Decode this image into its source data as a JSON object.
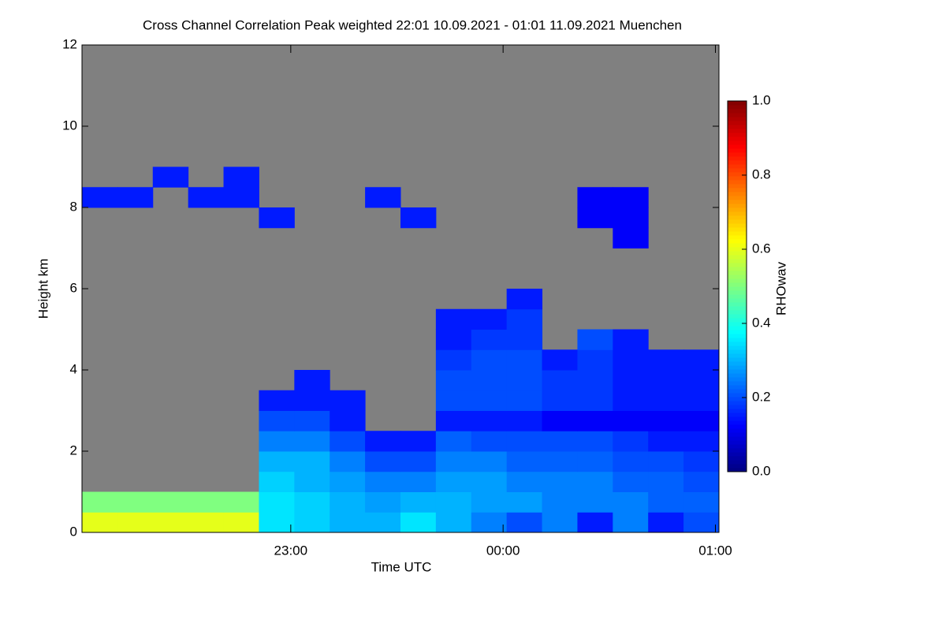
{
  "chart_data": {
    "type": "heatmap",
    "title": "Cross Channel Correlation Peak weighted   22:01 10.09.2021 - 01:01 11.09.2021 Muenchen",
    "x_label": "Time UTC",
    "y_label": "Height km",
    "colorbar_label": "RHOwav",
    "colormap": "jet",
    "no_data_color": "#808080",
    "xlim": [
      22.0167,
      25.0167
    ],
    "xticks": [
      {
        "value": 23,
        "label": "23:00"
      },
      {
        "value": 24,
        "label": "00:00"
      },
      {
        "value": 25,
        "label": "01:00"
      }
    ],
    "ylim": [
      0,
      12
    ],
    "yticks": [
      0,
      2,
      4,
      6,
      8,
      10,
      12
    ],
    "clim": [
      0,
      1
    ],
    "cticks": [
      {
        "value": 0,
        "label": "0.0"
      },
      0.2,
      0.4,
      0.6,
      0.8,
      {
        "value": 1,
        "label": "1.0"
      }
    ],
    "x": [
      22.0167,
      22.1833,
      22.35,
      22.5167,
      22.6833,
      22.85,
      23.0167,
      23.1833,
      23.35,
      23.5167,
      23.6833,
      23.85,
      24.0167,
      24.1833,
      24.35,
      24.5167,
      24.6833,
      24.85,
      25.0167
    ],
    "y": [
      0,
      0.5,
      1,
      1.5,
      2,
      2.5,
      3,
      3.5,
      4,
      4.5,
      5,
      5.5,
      6,
      6.5,
      7,
      7.5,
      8,
      8.5,
      9
    ],
    "values": [
      [
        0.6,
        0.6,
        0.6,
        0.6,
        0.6,
        0.35,
        0.33,
        0.3,
        0.3,
        0.35,
        0.3,
        0.25,
        0.2,
        0.25,
        0.15,
        0.25,
        0.15,
        0.2
      ],
      [
        0.5,
        0.5,
        0.5,
        0.5,
        0.5,
        0.35,
        0.33,
        0.3,
        0.28,
        0.3,
        0.3,
        0.28,
        0.28,
        0.25,
        0.25,
        0.25,
        0.22,
        0.22
      ],
      [
        null,
        null,
        null,
        null,
        null,
        0.33,
        0.3,
        0.28,
        0.25,
        0.25,
        0.28,
        0.28,
        0.25,
        0.25,
        0.25,
        0.22,
        0.22,
        0.2
      ],
      [
        null,
        null,
        null,
        null,
        null,
        0.3,
        0.3,
        0.25,
        0.2,
        0.2,
        0.25,
        0.25,
        0.22,
        0.22,
        0.22,
        0.2,
        0.2,
        0.18
      ],
      [
        null,
        null,
        null,
        null,
        null,
        0.25,
        0.25,
        0.2,
        0.15,
        0.15,
        0.22,
        0.2,
        0.2,
        0.2,
        0.2,
        0.18,
        0.15,
        0.15
      ],
      [
        null,
        null,
        null,
        null,
        null,
        0.2,
        0.2,
        0.15,
        null,
        null,
        0.15,
        0.15,
        0.15,
        0.12,
        0.12,
        0.12,
        0.12,
        0.12
      ],
      [
        null,
        null,
        null,
        null,
        null,
        0.15,
        0.15,
        0.15,
        null,
        null,
        0.2,
        0.2,
        0.2,
        0.18,
        0.18,
        0.15,
        0.15,
        0.15
      ],
      [
        null,
        null,
        null,
        null,
        null,
        null,
        0.15,
        null,
        null,
        null,
        0.2,
        0.2,
        0.2,
        0.18,
        0.18,
        0.15,
        0.15,
        0.15
      ],
      [
        null,
        null,
        null,
        null,
        null,
        null,
        null,
        null,
        null,
        null,
        0.18,
        0.2,
        0.2,
        0.15,
        0.18,
        0.15,
        0.15,
        0.15
      ],
      [
        null,
        null,
        null,
        null,
        null,
        null,
        null,
        null,
        null,
        null,
        0.15,
        0.18,
        0.18,
        null,
        0.2,
        0.15,
        null,
        null
      ],
      [
        null,
        null,
        null,
        null,
        null,
        null,
        null,
        null,
        null,
        null,
        0.15,
        0.15,
        0.18,
        null,
        null,
        null,
        null,
        null
      ],
      [
        null,
        null,
        null,
        null,
        null,
        null,
        null,
        null,
        null,
        null,
        null,
        null,
        0.15,
        null,
        null,
        null,
        null,
        null
      ],
      [
        null,
        null,
        null,
        null,
        null,
        null,
        null,
        null,
        null,
        null,
        null,
        null,
        null,
        null,
        null,
        null,
        null,
        null
      ],
      [
        null,
        null,
        null,
        null,
        null,
        null,
        null,
        null,
        null,
        null,
        null,
        null,
        null,
        null,
        null,
        null,
        null,
        null
      ],
      [
        null,
        null,
        null,
        null,
        null,
        null,
        null,
        null,
        null,
        null,
        null,
        null,
        null,
        null,
        null,
        0.12,
        null,
        null
      ],
      [
        null,
        null,
        null,
        null,
        null,
        0.15,
        null,
        null,
        null,
        0.15,
        null,
        null,
        null,
        null,
        0.12,
        0.12,
        null,
        null
      ],
      [
        0.15,
        0.15,
        null,
        0.15,
        0.15,
        null,
        null,
        null,
        0.15,
        null,
        null,
        null,
        null,
        null,
        0.12,
        0.12,
        null,
        null
      ],
      [
        null,
        null,
        0.15,
        null,
        0.15,
        null,
        null,
        null,
        null,
        null,
        null,
        null,
        null,
        null,
        null,
        null,
        null,
        null
      ]
    ]
  }
}
